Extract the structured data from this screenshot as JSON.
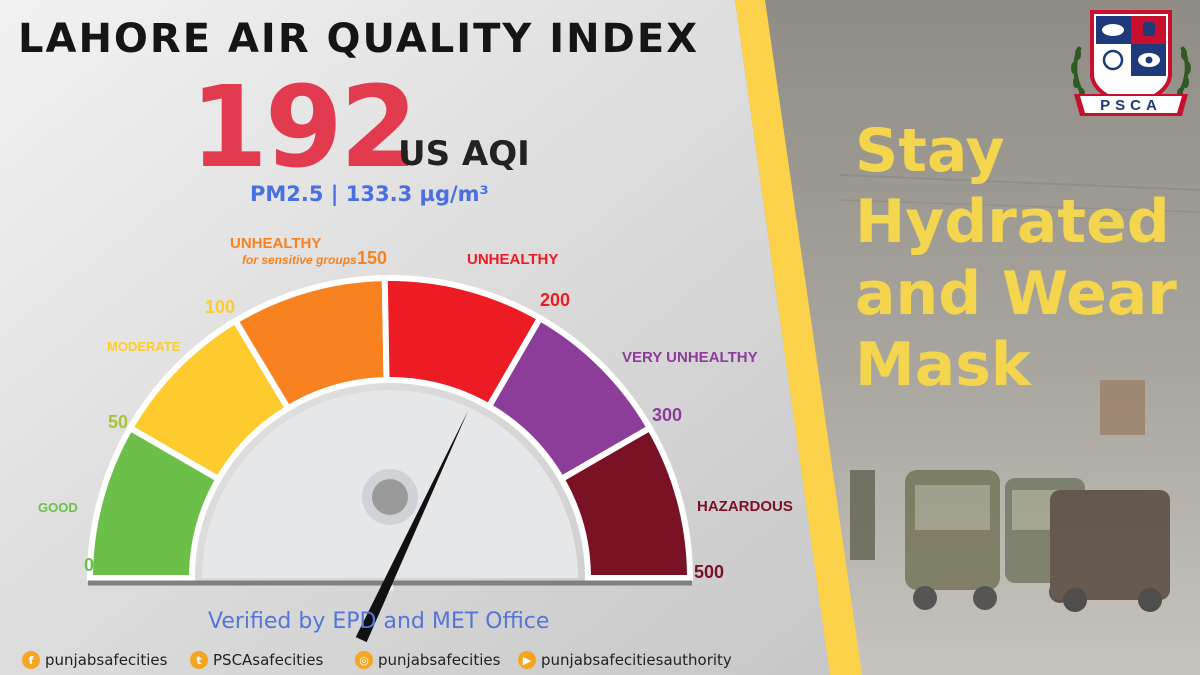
{
  "title": "LAHORE AIR QUALITY INDEX",
  "aqi": {
    "value": "192",
    "unit": "US AQI",
    "pollutant_reading": "PM2.5 | 133.3 µg/m³"
  },
  "gauge": {
    "min": 0,
    "max": 500,
    "value": 192,
    "ticks": [
      "0",
      "50",
      "100",
      "150",
      "200",
      "300",
      "500"
    ],
    "segments": [
      {
        "label": "GOOD",
        "color": "#6cc04a"
      },
      {
        "label": "MODERATE",
        "color": "#fecb2f"
      },
      {
        "label": "UNHEALTHY",
        "sublabel": "for sensitive groups",
        "color": "#f7821f"
      },
      {
        "label": "UNHEALTHY",
        "color": "#ed1c24"
      },
      {
        "label": "VERY UNHEALTHY",
        "color": "#8b3d99"
      },
      {
        "label": "HAZARDOUS",
        "color": "#7b1124"
      }
    ]
  },
  "verified_text": "Verified by EPD and MET Office",
  "social": [
    {
      "platform_icon": "facebook-icon",
      "handle": "punjabsafecities"
    },
    {
      "platform_icon": "twitter-icon",
      "handle": "PSCAsafecities"
    },
    {
      "platform_icon": "instagram-icon",
      "handle": "punjabsafecities"
    },
    {
      "platform_icon": "youtube-icon",
      "handle": "punjabsafecitiesauthority"
    }
  ],
  "slogan": {
    "line1": "Stay",
    "line2": "Hydrated",
    "line3": "and Wear",
    "line4": "Mask"
  },
  "logo": {
    "text": "PSCA"
  },
  "colors": {
    "accent_yellow": "#fbd24a",
    "aqi_red": "#e23b4f",
    "link_blue": "#5575d8"
  }
}
